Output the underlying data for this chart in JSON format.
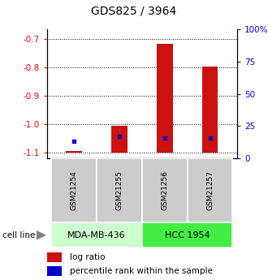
{
  "title": "GDS825 / 3964",
  "samples": [
    "GSM21254",
    "GSM21255",
    "GSM21256",
    "GSM21257"
  ],
  "log_ratios": [
    -1.095,
    -1.005,
    -0.715,
    -0.795
  ],
  "percentile_ranks": [
    13,
    17,
    16,
    16
  ],
  "ylim_left": [
    -1.12,
    -0.665
  ],
  "ylim_right": [
    0,
    100
  ],
  "baseline": -1.1,
  "yticks_left": [
    -1.1,
    -1.0,
    -0.9,
    -0.8,
    -0.7
  ],
  "yticks_right": [
    0,
    25,
    50,
    75,
    100
  ],
  "ytick_labels_right": [
    "0",
    "25",
    "50",
    "75",
    "100%"
  ],
  "cell_lines": [
    {
      "label": "MDA-MB-436",
      "samples": [
        0,
        1
      ],
      "color": "#ccffcc"
    },
    {
      "label": "HCC 1954",
      "samples": [
        2,
        3
      ],
      "color": "#44ee44"
    }
  ],
  "bar_color": "#cc1111",
  "percentile_color": "#0000cc",
  "bar_width": 0.35,
  "sample_label_color": "#cccccc",
  "title_fontsize": 10,
  "tick_fontsize": 7.5,
  "sample_fontsize": 6.5,
  "cell_fontsize": 8,
  "legend_fontsize": 7.5
}
